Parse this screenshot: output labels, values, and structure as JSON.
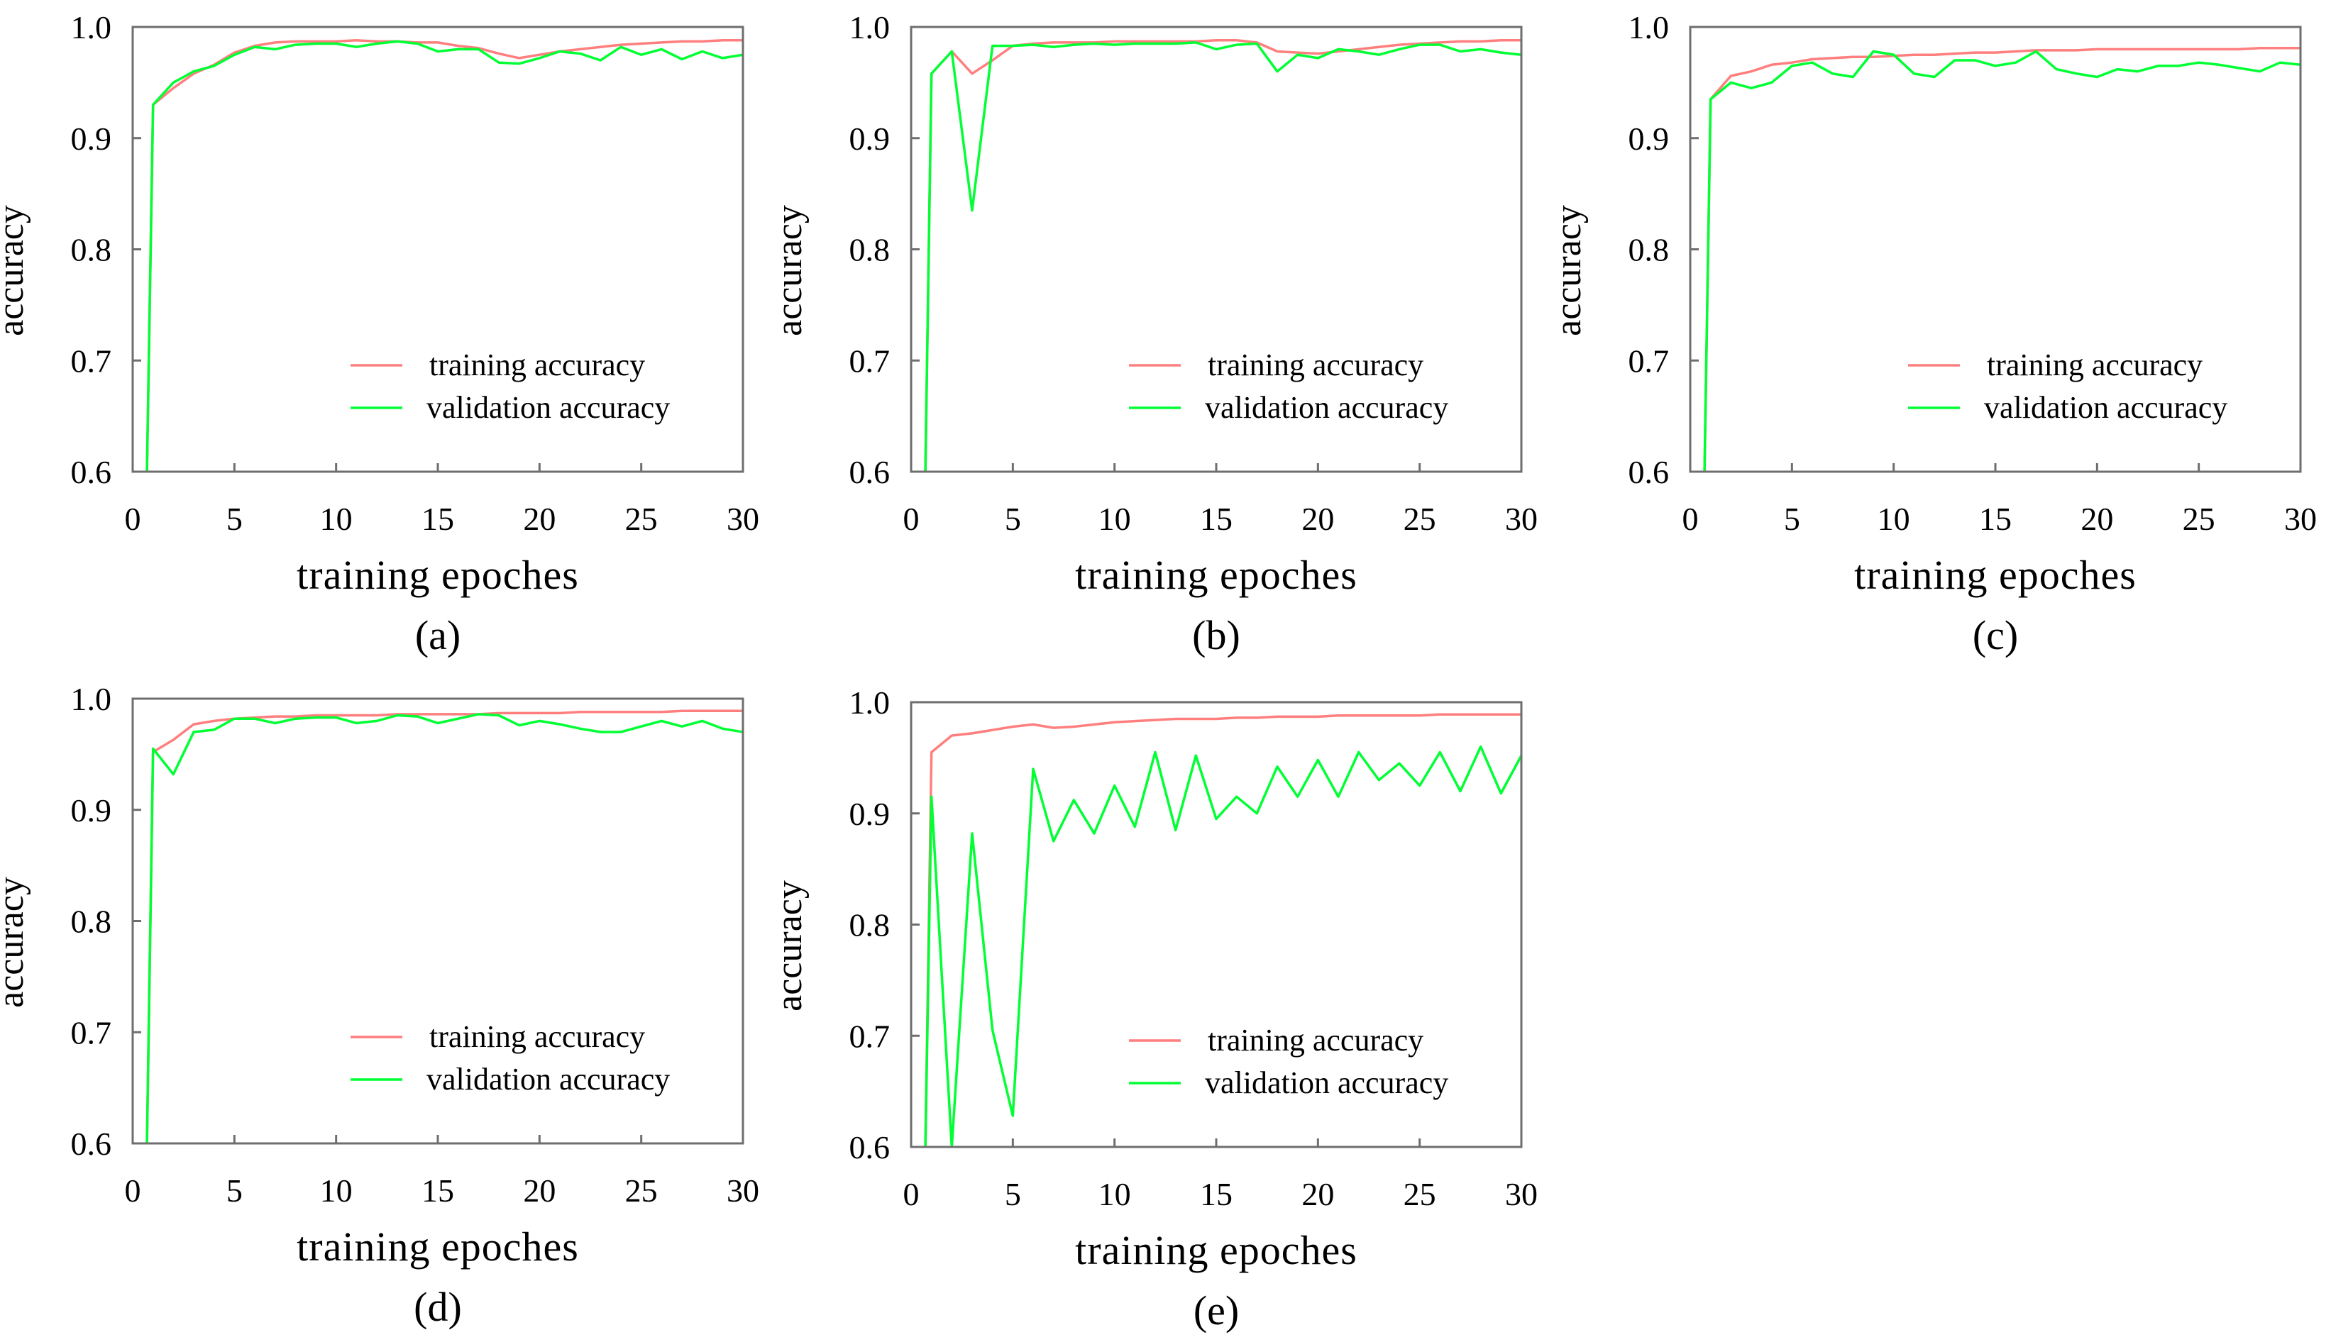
{
  "chart_data": [
    {
      "type": "line",
      "panel": "(a)",
      "xlabel": "training epoches",
      "ylabel": "accuracy",
      "xlim": [
        0,
        30
      ],
      "ylim": [
        0.6,
        1.0
      ],
      "xticks": [
        "0",
        "5",
        "10",
        "15",
        "20",
        "25",
        "30"
      ],
      "yticks": [
        "0.6",
        "0.7",
        "0.8",
        "0.9",
        "1.0"
      ],
      "legend_position": "lower-right",
      "x": [
        0.7,
        1,
        2,
        3,
        4,
        5,
        6,
        7,
        8,
        9,
        10,
        11,
        12,
        13,
        14,
        15,
        16,
        17,
        18,
        19,
        20,
        21,
        22,
        23,
        24,
        25,
        26,
        27,
        28,
        29,
        30
      ],
      "series": [
        {
          "name": "training accuracy",
          "color": "#ff7f7f",
          "values": [
            0.6,
            0.93,
            0.945,
            0.958,
            0.966,
            0.977,
            0.983,
            0.986,
            0.987,
            0.987,
            0.987,
            0.988,
            0.987,
            0.987,
            0.986,
            0.986,
            0.983,
            0.981,
            0.976,
            0.972,
            0.975,
            0.978,
            0.98,
            0.982,
            0.984,
            0.985,
            0.986,
            0.987,
            0.987,
            0.988,
            0.988
          ]
        },
        {
          "name": "validation accuracy",
          "color": "#00ff33",
          "values": [
            0.6,
            0.93,
            0.95,
            0.96,
            0.965,
            0.975,
            0.982,
            0.98,
            0.984,
            0.985,
            0.985,
            0.982,
            0.985,
            0.987,
            0.985,
            0.978,
            0.98,
            0.98,
            0.968,
            0.967,
            0.972,
            0.978,
            0.976,
            0.97,
            0.982,
            0.975,
            0.98,
            0.971,
            0.978,
            0.972,
            0.975
          ]
        }
      ]
    },
    {
      "type": "line",
      "panel": "(b)",
      "xlabel": "training epoches",
      "ylabel": "accuracy",
      "xlim": [
        0,
        30
      ],
      "ylim": [
        0.6,
        1.0
      ],
      "xticks": [
        "0",
        "5",
        "10",
        "15",
        "20",
        "25",
        "30"
      ],
      "yticks": [
        "0.6",
        "0.7",
        "0.8",
        "0.9",
        "1.0"
      ],
      "legend_position": "lower-right",
      "x": [
        0.7,
        1,
        2,
        3,
        4,
        5,
        6,
        7,
        8,
        9,
        10,
        11,
        12,
        13,
        14,
        15,
        16,
        17,
        18,
        19,
        20,
        21,
        22,
        23,
        24,
        25,
        26,
        27,
        28,
        29,
        30
      ],
      "series": [
        {
          "name": "training accuracy",
          "color": "#ff7f7f",
          "values": [
            0.6,
            0.958,
            0.978,
            0.958,
            0.97,
            0.983,
            0.985,
            0.986,
            0.986,
            0.986,
            0.987,
            0.987,
            0.987,
            0.987,
            0.987,
            0.988,
            0.988,
            0.986,
            0.978,
            0.977,
            0.976,
            0.978,
            0.98,
            0.982,
            0.984,
            0.985,
            0.986,
            0.987,
            0.987,
            0.988,
            0.988
          ]
        },
        {
          "name": "validation accuracy",
          "color": "#00ff33",
          "values": [
            0.6,
            0.958,
            0.978,
            0.835,
            0.983,
            0.983,
            0.984,
            0.982,
            0.984,
            0.985,
            0.984,
            0.985,
            0.985,
            0.985,
            0.986,
            0.98,
            0.984,
            0.985,
            0.96,
            0.975,
            0.972,
            0.98,
            0.978,
            0.975,
            0.98,
            0.984,
            0.984,
            0.978,
            0.98,
            0.977,
            0.975
          ]
        }
      ]
    },
    {
      "type": "line",
      "panel": "(c)",
      "xlabel": "training epoches",
      "ylabel": "accuracy",
      "xlim": [
        0,
        30
      ],
      "ylim": [
        0.6,
        1.0
      ],
      "xticks": [
        "0",
        "5",
        "10",
        "15",
        "20",
        "25",
        "30"
      ],
      "yticks": [
        "0.6",
        "0.7",
        "0.8",
        "0.9",
        "1.0"
      ],
      "legend_position": "lower-right",
      "x": [
        0.7,
        1,
        2,
        3,
        4,
        5,
        6,
        7,
        8,
        9,
        10,
        11,
        12,
        13,
        14,
        15,
        16,
        17,
        18,
        19,
        20,
        21,
        22,
        23,
        24,
        25,
        26,
        27,
        28,
        29,
        30
      ],
      "series": [
        {
          "name": "training accuracy",
          "color": "#ff7f7f",
          "values": [
            0.6,
            0.935,
            0.956,
            0.96,
            0.966,
            0.968,
            0.971,
            0.972,
            0.973,
            0.973,
            0.974,
            0.975,
            0.975,
            0.976,
            0.977,
            0.977,
            0.978,
            0.979,
            0.979,
            0.979,
            0.98,
            0.98,
            0.98,
            0.98,
            0.98,
            0.98,
            0.98,
            0.98,
            0.981,
            0.981,
            0.981
          ]
        },
        {
          "name": "validation accuracy",
          "color": "#00ff33",
          "values": [
            0.6,
            0.935,
            0.95,
            0.945,
            0.95,
            0.965,
            0.968,
            0.958,
            0.955,
            0.978,
            0.975,
            0.958,
            0.955,
            0.97,
            0.97,
            0.965,
            0.968,
            0.978,
            0.962,
            0.958,
            0.955,
            0.962,
            0.96,
            0.965,
            0.965,
            0.968,
            0.966,
            0.963,
            0.96,
            0.968,
            0.966
          ]
        }
      ]
    },
    {
      "type": "line",
      "panel": "(d)",
      "xlabel": "training epoches",
      "ylabel": "accuracy",
      "xlim": [
        0,
        30
      ],
      "ylim": [
        0.6,
        1.0
      ],
      "xticks": [
        "0",
        "5",
        "10",
        "15",
        "20",
        "25",
        "30"
      ],
      "yticks": [
        "0.6",
        "0.7",
        "0.8",
        "0.9",
        "1.0"
      ],
      "legend_position": "lower-right",
      "x": [
        0.7,
        1,
        2,
        3,
        4,
        5,
        6,
        7,
        8,
        9,
        10,
        11,
        12,
        13,
        14,
        15,
        16,
        17,
        18,
        19,
        20,
        21,
        22,
        23,
        24,
        25,
        26,
        27,
        28,
        29,
        30
      ],
      "series": [
        {
          "name": "training accuracy",
          "color": "#ff7f7f",
          "values": [
            0.6,
            0.952,
            0.963,
            0.977,
            0.98,
            0.982,
            0.983,
            0.984,
            0.984,
            0.985,
            0.985,
            0.985,
            0.985,
            0.986,
            0.986,
            0.986,
            0.986,
            0.986,
            0.987,
            0.987,
            0.987,
            0.987,
            0.988,
            0.988,
            0.988,
            0.988,
            0.988,
            0.989,
            0.989,
            0.989,
            0.989
          ]
        },
        {
          "name": "validation accuracy",
          "color": "#00ff33",
          "values": [
            0.6,
            0.955,
            0.932,
            0.97,
            0.972,
            0.982,
            0.982,
            0.978,
            0.982,
            0.983,
            0.983,
            0.978,
            0.98,
            0.985,
            0.984,
            0.978,
            0.982,
            0.986,
            0.985,
            0.976,
            0.98,
            0.977,
            0.973,
            0.97,
            0.97,
            0.975,
            0.98,
            0.975,
            0.98,
            0.973,
            0.97
          ]
        }
      ]
    },
    {
      "type": "line",
      "panel": "(e)",
      "xlabel": "training epoches",
      "ylabel": "accuracy",
      "xlim": [
        0,
        30
      ],
      "ylim": [
        0.6,
        1.0
      ],
      "xticks": [
        "0",
        "5",
        "10",
        "15",
        "20",
        "25",
        "30"
      ],
      "yticks": [
        "0.6",
        "0.7",
        "0.8",
        "0.9",
        "1.0"
      ],
      "legend_position": "lower-right",
      "x": [
        0.7,
        1,
        2,
        3,
        4,
        5,
        6,
        7,
        8,
        9,
        10,
        11,
        12,
        13,
        14,
        15,
        16,
        17,
        18,
        19,
        20,
        21,
        22,
        23,
        24,
        25,
        26,
        27,
        28,
        29,
        30
      ],
      "series": [
        {
          "name": "training accuracy",
          "color": "#ff7f7f",
          "values": [
            0.6,
            0.955,
            0.97,
            0.972,
            0.975,
            0.978,
            0.98,
            0.977,
            0.978,
            0.98,
            0.982,
            0.983,
            0.984,
            0.985,
            0.985,
            0.985,
            0.986,
            0.986,
            0.987,
            0.987,
            0.987,
            0.988,
            0.988,
            0.988,
            0.988,
            0.988,
            0.989,
            0.989,
            0.989,
            0.989,
            0.989
          ]
        },
        {
          "name": "validation accuracy",
          "color": "#00ff33",
          "values": [
            0.6,
            0.915,
            0.6,
            0.882,
            0.705,
            0.628,
            0.94,
            0.875,
            0.912,
            0.882,
            0.925,
            0.888,
            0.955,
            0.885,
            0.952,
            0.895,
            0.915,
            0.9,
            0.942,
            0.915,
            0.948,
            0.915,
            0.955,
            0.93,
            0.945,
            0.925,
            0.955,
            0.92,
            0.96,
            0.918,
            0.952
          ]
        }
      ]
    }
  ]
}
